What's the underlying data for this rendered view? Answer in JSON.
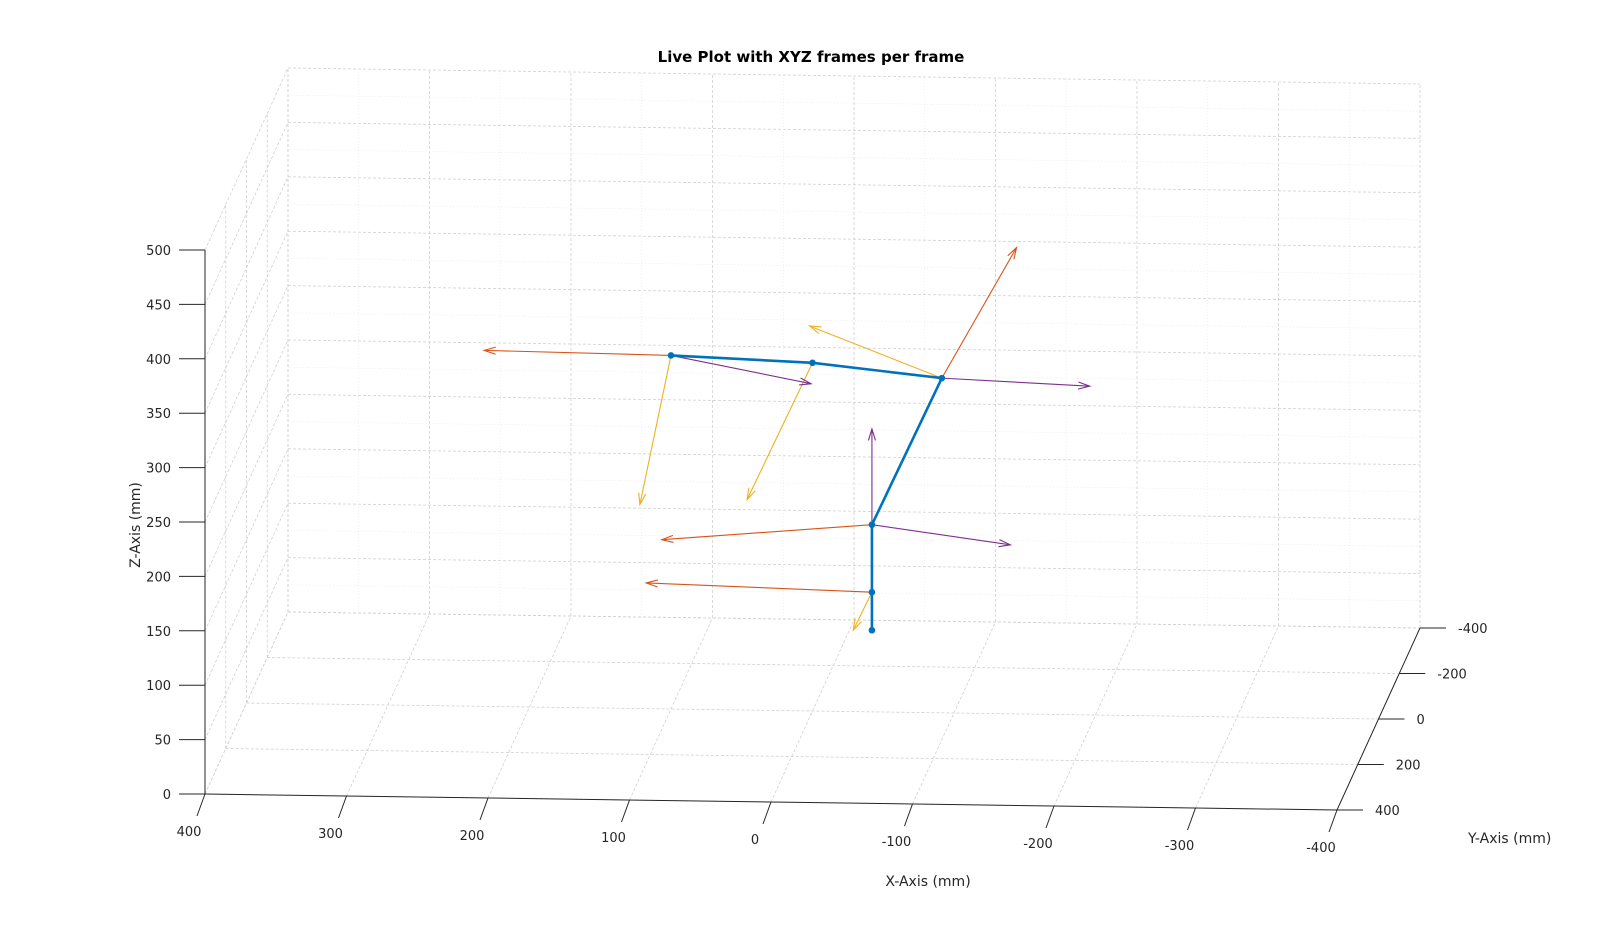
{
  "chart_data": {
    "type": "line",
    "title": "Live Plot with XYZ frames per frame",
    "xlabel": "X-Axis (mm)",
    "ylabel": "Y-Axis (mm)",
    "zlabel": "Z-Axis (mm)",
    "xlim": [
      -400,
      400
    ],
    "ylim": [
      -400,
      400
    ],
    "zlim": [
      0,
      500
    ],
    "x_ticks": [
      "400",
      "300",
      "200",
      "100",
      "0",
      "-100",
      "-200",
      "-300",
      "-400"
    ],
    "y_ticks": [
      "-400",
      "-200",
      "0",
      "200",
      "400"
    ],
    "z_ticks": [
      "0",
      "50",
      "100",
      "150",
      "200",
      "250",
      "300",
      "350",
      "400",
      "450",
      "500"
    ],
    "grid": "on",
    "view": "3d",
    "colors": {
      "link": "#0072BD",
      "frame_x": "#D95319",
      "frame_y": "#EDB120",
      "frame_z": "#7E2F8E",
      "grid": "#d0d0d0",
      "axis": "#262626"
    },
    "joints": [
      {
        "x": -42,
        "y": 0,
        "z": 75
      },
      {
        "x": -42,
        "y": 0,
        "z": 110
      },
      {
        "x": -42,
        "y": 0,
        "z": 172
      },
      {
        "x": -87,
        "y": -60,
        "z": 295
      },
      {
        "x": 0,
        "y": 0,
        "z": 320
      },
      {
        "x": 100,
        "y": 0,
        "z": 325
      }
    ]
  }
}
